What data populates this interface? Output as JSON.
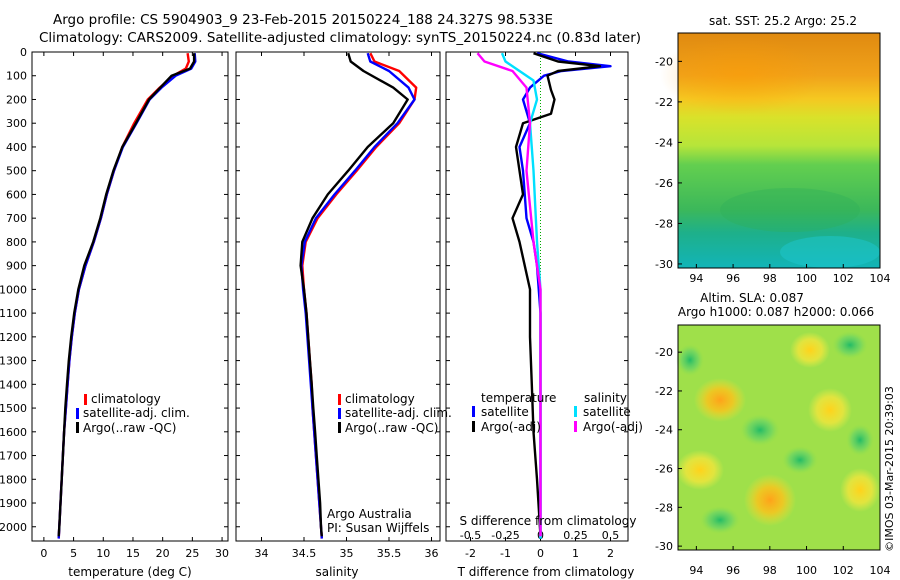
{
  "header": {
    "line1": "Argo profile: CS 5904903_9 23-Feb-2015 20150224_188 24.327S 98.533E",
    "line2": "Climatology: CARS2009. Satellite-adjusted climatology: synTS_20150224.nc (0.83d later)"
  },
  "credit": {
    "org": "Argo Australia",
    "pi": "PI: Susan Wijffels",
    "stamp": "©IMOS 03-Mar-2015 20:39:03"
  },
  "depth_ticks": [
    0,
    100,
    200,
    300,
    400,
    500,
    600,
    700,
    800,
    900,
    1000,
    1100,
    1200,
    1300,
    1400,
    1500,
    1600,
    1700,
    1800,
    1900,
    2000
  ],
  "colors": {
    "climatology": "#ff0000",
    "satellite": "#0000ff",
    "argo": "#000000",
    "sat_salinity": "#00e0ff",
    "argo_salinity": "#ff00ff"
  },
  "chart_data": [
    {
      "type": "line",
      "xlabel": "temperature (deg C)",
      "ylabel": "",
      "xlim": [
        -2,
        31
      ],
      "ylim": [
        2060,
        0
      ],
      "xticks": [
        0,
        5,
        10,
        15,
        20,
        25,
        30
      ],
      "legend": [
        "climatology",
        "satellite-adj. clim.",
        "Argo(..raw -QC)"
      ],
      "series": [
        {
          "name": "climatology",
          "color": "#ff0000",
          "points": [
            [
              24.2,
              5
            ],
            [
              24.4,
              40
            ],
            [
              23.9,
              70
            ],
            [
              21.8,
              100
            ],
            [
              19.5,
              150
            ],
            [
              17.5,
              200
            ],
            [
              15.2,
              300
            ],
            [
              13.2,
              400
            ],
            [
              11.8,
              500
            ],
            [
              10.6,
              600
            ],
            [
              9.6,
              700
            ],
            [
              8.4,
              800
            ],
            [
              7.0,
              900
            ],
            [
              5.9,
              1000
            ],
            [
              5.2,
              1100
            ],
            [
              4.7,
              1200
            ],
            [
              4.3,
              1300
            ],
            [
              4.0,
              1400
            ],
            [
              3.7,
              1500
            ],
            [
              3.4,
              1600
            ],
            [
              3.2,
              1700
            ],
            [
              3.0,
              1800
            ],
            [
              2.8,
              1900
            ],
            [
              2.6,
              2000
            ],
            [
              2.5,
              2050
            ]
          ]
        },
        {
          "name": "satellite-adj. clim.",
          "color": "#0000ff",
          "points": [
            [
              25.4,
              5
            ],
            [
              25.5,
              40
            ],
            [
              24.8,
              70
            ],
            [
              22.2,
              100
            ],
            [
              19.8,
              150
            ],
            [
              17.8,
              200
            ],
            [
              15.6,
              300
            ],
            [
              13.3,
              400
            ],
            [
              11.8,
              500
            ],
            [
              10.6,
              600
            ],
            [
              9.6,
              700
            ],
            [
              8.4,
              800
            ],
            [
              7.0,
              900
            ],
            [
              5.9,
              1000
            ],
            [
              5.2,
              1100
            ],
            [
              4.7,
              1200
            ],
            [
              4.3,
              1300
            ],
            [
              4.0,
              1400
            ],
            [
              3.7,
              1500
            ],
            [
              3.4,
              1600
            ],
            [
              3.2,
              1700
            ],
            [
              3.0,
              1800
            ],
            [
              2.8,
              1900
            ],
            [
              2.6,
              2000
            ],
            [
              2.5,
              2050
            ]
          ]
        },
        {
          "name": "Argo(..raw -QC)",
          "color": "#000000",
          "points": [
            [
              25.3,
              5
            ],
            [
              25.3,
              40
            ],
            [
              24.6,
              70
            ],
            [
              21.5,
              100
            ],
            [
              19.6,
              150
            ],
            [
              17.7,
              200
            ],
            [
              15.5,
              300
            ],
            [
              13.2,
              400
            ],
            [
              11.7,
              500
            ],
            [
              10.5,
              600
            ],
            [
              9.5,
              700
            ],
            [
              8.3,
              800
            ],
            [
              6.8,
              900
            ],
            [
              5.8,
              1000
            ],
            [
              5.1,
              1100
            ],
            [
              4.6,
              1200
            ],
            [
              4.2,
              1300
            ],
            [
              3.9,
              1400
            ],
            [
              3.6,
              1500
            ],
            [
              3.4,
              1600
            ],
            [
              3.2,
              1700
            ],
            [
              3.0,
              1800
            ],
            [
              2.8,
              1900
            ],
            [
              2.6,
              2000
            ],
            [
              2.5,
              2040
            ]
          ]
        }
      ]
    },
    {
      "type": "line",
      "xlabel": "salinity",
      "ylabel": "",
      "xlim": [
        33.7,
        36.1
      ],
      "ylim": [
        2060,
        0
      ],
      "xticks": [
        34,
        34.5,
        35,
        35.5,
        36
      ],
      "xticklabels": [
        "34",
        "34.5",
        "35",
        "35.5",
        "36"
      ],
      "legend": [
        "climatology",
        "satellite-adj. clim.",
        "Argo(..raw -QC)"
      ],
      "series": [
        {
          "name": "climatology",
          "color": "#ff0000",
          "points": [
            [
              35.28,
              5
            ],
            [
              35.33,
              40
            ],
            [
              35.62,
              80
            ],
            [
              35.82,
              150
            ],
            [
              35.8,
              200
            ],
            [
              35.62,
              300
            ],
            [
              35.35,
              400
            ],
            [
              35.12,
              500
            ],
            [
              34.88,
              600
            ],
            [
              34.66,
              700
            ],
            [
              34.52,
              800
            ],
            [
              34.48,
              900
            ],
            [
              34.5,
              1000
            ],
            [
              34.53,
              1100
            ],
            [
              34.55,
              1200
            ],
            [
              34.57,
              1300
            ],
            [
              34.59,
              1400
            ],
            [
              34.6,
              1500
            ],
            [
              34.62,
              1600
            ],
            [
              34.64,
              1700
            ],
            [
              34.66,
              1800
            ],
            [
              34.68,
              1900
            ],
            [
              34.7,
              2000
            ],
            [
              34.71,
              2050
            ]
          ]
        },
        {
          "name": "satellite-adj. clim.",
          "color": "#0000ff",
          "points": [
            [
              35.25,
              5
            ],
            [
              35.28,
              40
            ],
            [
              35.5,
              80
            ],
            [
              35.73,
              150
            ],
            [
              35.8,
              200
            ],
            [
              35.6,
              300
            ],
            [
              35.33,
              400
            ],
            [
              35.1,
              500
            ],
            [
              34.86,
              600
            ],
            [
              34.64,
              700
            ],
            [
              34.51,
              800
            ],
            [
              34.47,
              900
            ],
            [
              34.49,
              1000
            ],
            [
              34.52,
              1100
            ],
            [
              34.54,
              1200
            ],
            [
              34.56,
              1300
            ],
            [
              34.58,
              1400
            ],
            [
              34.6,
              1500
            ],
            [
              34.62,
              1600
            ],
            [
              34.64,
              1700
            ],
            [
              34.66,
              1800
            ],
            [
              34.68,
              1900
            ],
            [
              34.7,
              2000
            ],
            [
              34.71,
              2050
            ]
          ]
        },
        {
          "name": "Argo(..raw -QC)",
          "color": "#000000",
          "points": [
            [
              35.02,
              5
            ],
            [
              35.05,
              40
            ],
            [
              35.2,
              80
            ],
            [
              35.55,
              150
            ],
            [
              35.72,
              200
            ],
            [
              35.55,
              300
            ],
            [
              35.25,
              400
            ],
            [
              35.02,
              500
            ],
            [
              34.78,
              600
            ],
            [
              34.6,
              700
            ],
            [
              34.48,
              800
            ],
            [
              34.46,
              900
            ],
            [
              34.5,
              1000
            ],
            [
              34.53,
              1100
            ],
            [
              34.55,
              1200
            ],
            [
              34.57,
              1300
            ],
            [
              34.59,
              1400
            ],
            [
              34.61,
              1500
            ],
            [
              34.63,
              1600
            ],
            [
              34.65,
              1700
            ],
            [
              34.67,
              1800
            ],
            [
              34.69,
              1900
            ],
            [
              34.7,
              2000
            ],
            [
              34.71,
              2040
            ]
          ]
        }
      ]
    },
    {
      "type": "line",
      "xlabel": "T difference from climatology",
      "top_label": "S difference from climatology",
      "xlim": [
        -2.7,
        2.5
      ],
      "ylim": [
        2060,
        0
      ],
      "xticks": [
        -2,
        -1,
        0,
        1,
        2
      ],
      "xticks_s": [
        -0.5,
        -0.25,
        0,
        0.25,
        0.5
      ],
      "xticklabels_s": [
        "-0.5",
        "-0.25",
        "0",
        "0.25",
        "0.5"
      ],
      "legend": {
        "temperature": [
          "satellite",
          "Argo(-adj)"
        ],
        "salinity": [
          "satellite",
          "Argo(-adj)"
        ]
      },
      "legend_headers": [
        "temperature",
        "salinity"
      ],
      "series": [
        {
          "name": "satellite",
          "group": "temperature",
          "color": "#0000ff",
          "points": [
            [
              -0.1,
              5
            ],
            [
              0.8,
              40
            ],
            [
              2.0,
              60
            ],
            [
              0.6,
              80
            ],
            [
              0.1,
              100
            ],
            [
              -0.3,
              150
            ],
            [
              -0.5,
              200
            ],
            [
              -0.3,
              300
            ],
            [
              -0.6,
              400
            ],
            [
              -0.5,
              500
            ],
            [
              -0.4,
              700
            ],
            [
              -0.2,
              800
            ],
            [
              -0.1,
              900
            ],
            [
              0,
              1100
            ],
            [
              0,
              2050
            ]
          ]
        },
        {
          "name": "Argo(-adj)",
          "group": "temperature",
          "color": "#000000",
          "points": [
            [
              -0.2,
              5
            ],
            [
              0.5,
              40
            ],
            [
              1.7,
              60
            ],
            [
              0.5,
              80
            ],
            [
              0.2,
              100
            ],
            [
              0.3,
              160
            ],
            [
              0.4,
              200
            ],
            [
              0.3,
              260
            ],
            [
              -0.5,
              300
            ],
            [
              -0.7,
              400
            ],
            [
              -0.6,
              500
            ],
            [
              -0.5,
              600
            ],
            [
              -0.8,
              700
            ],
            [
              -0.6,
              800
            ],
            [
              -0.3,
              1000
            ],
            [
              -0.3,
              1200
            ],
            [
              -0.25,
              1400
            ],
            [
              -0.2,
              1600
            ],
            [
              -0.1,
              1800
            ],
            [
              0,
              2040
            ]
          ]
        },
        {
          "name": "satellite",
          "group": "salinity",
          "color": "#00e0ff",
          "points": [
            [
              -1.1,
              5
            ],
            [
              -1.0,
              40
            ],
            [
              -0.6,
              80
            ],
            [
              -0.2,
              120
            ],
            [
              -0.1,
              200
            ],
            [
              -0.3,
              300
            ],
            [
              -0.2,
              500
            ],
            [
              -0.1,
              800
            ],
            [
              0,
              1000
            ],
            [
              0,
              2050
            ]
          ]
        },
        {
          "name": "Argo(-adj)",
          "group": "salinity",
          "color": "#ff00ff",
          "points": [
            [
              -1.8,
              5
            ],
            [
              -1.6,
              40
            ],
            [
              -0.8,
              80
            ],
            [
              -0.4,
              150
            ],
            [
              -0.3,
              300
            ],
            [
              -0.4,
              500
            ],
            [
              -0.2,
              800
            ],
            [
              0,
              1000
            ],
            [
              0,
              2040
            ]
          ]
        }
      ]
    },
    {
      "type": "heatmap",
      "title": "sat. SST: 25.2 Argo: 25.2",
      "xlim": [
        93,
        104
      ],
      "ylim": [
        -30.2,
        -18.6
      ],
      "xticks": [
        94,
        96,
        98,
        100,
        102,
        104
      ],
      "yticks": [
        -20,
        -22,
        -24,
        -26,
        -28,
        -30
      ]
    },
    {
      "type": "heatmap",
      "title": "Altim. SLA: 0.087",
      "subtitle": "Argo h1000: 0.087 h2000: 0.066",
      "xlim": [
        93,
        104
      ],
      "ylim": [
        -30.2,
        -18.6
      ],
      "xticks": [
        94,
        96,
        98,
        100,
        102,
        104
      ],
      "yticks": [
        -20,
        -22,
        -24,
        -26,
        -28,
        -30
      ]
    }
  ]
}
